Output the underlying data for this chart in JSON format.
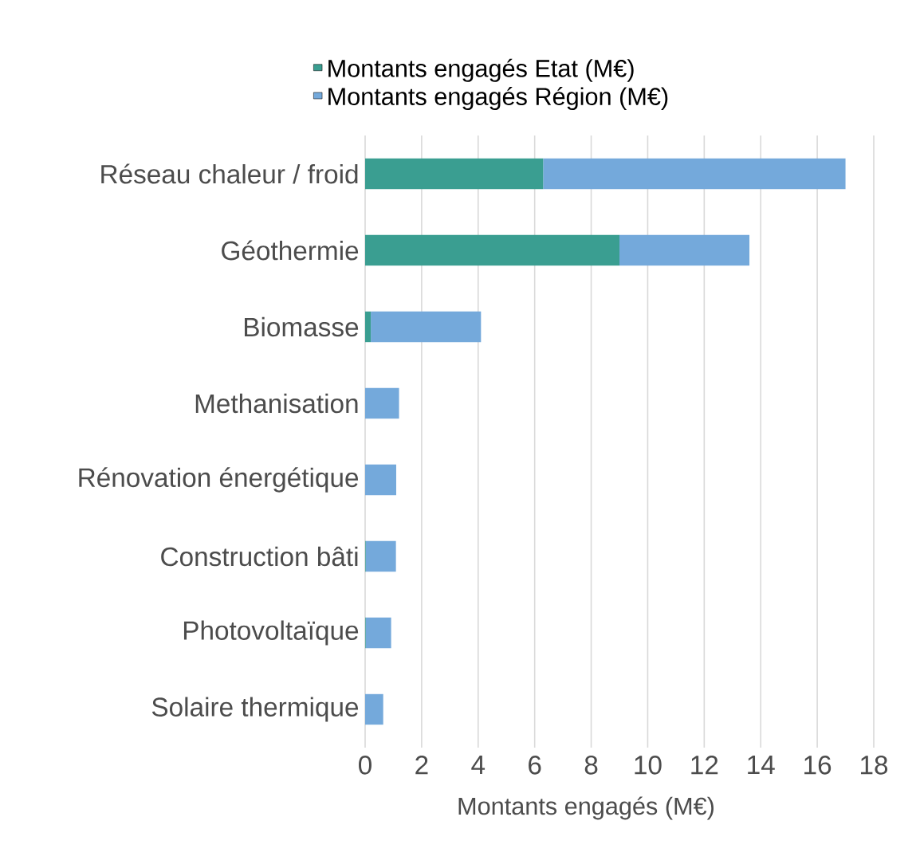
{
  "chart_data": {
    "type": "bar",
    "orientation": "horizontal",
    "stacked": true,
    "categories": [
      "Réseau chaleur / froid",
      "Géothermie",
      "Biomasse",
      "Methanisation",
      "Rénovation énergétique",
      "Construction bâti",
      "Photovoltaïque",
      "Solaire thermique"
    ],
    "series": [
      {
        "name": "Montants engagés Etat (M€)",
        "color": "#3a9e91",
        "values": [
          6.3,
          9.0,
          0.2,
          0,
          0,
          0.02,
          0.02,
          0
        ]
      },
      {
        "name": "Montants engagés Région (M€)",
        "color": "#74a9db",
        "values": [
          10.7,
          4.6,
          3.9,
          1.2,
          1.1,
          1.07,
          0.9,
          0.64
        ]
      }
    ],
    "xlabel": "Montants engagés (M€)",
    "xlim": [
      0,
      18
    ],
    "xticks": [
      0,
      2,
      4,
      6,
      8,
      10,
      12,
      14,
      16,
      18
    ],
    "grid": "x",
    "legend": "top"
  }
}
